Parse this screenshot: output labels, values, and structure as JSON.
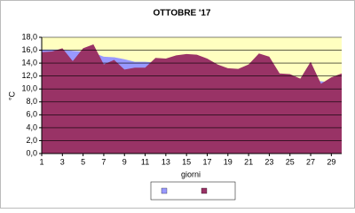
{
  "chart_data": {
    "type": "area",
    "title": "OTTOBRE '17",
    "x_label": "giorni",
    "y_label": "°C",
    "x": [
      1,
      2,
      3,
      4,
      5,
      6,
      7,
      8,
      9,
      10,
      11,
      12,
      13,
      14,
      15,
      16,
      17,
      18,
      19,
      20,
      21,
      22,
      23,
      24,
      25,
      26,
      27,
      28,
      29,
      30
    ],
    "xlim": [
      1,
      30
    ],
    "xticks": [
      1,
      3,
      5,
      7,
      9,
      11,
      13,
      15,
      17,
      19,
      21,
      23,
      25,
      27,
      29
    ],
    "ylim": [
      0,
      18
    ],
    "yticks": [
      {
        "value": 0,
        "label": "0,0"
      },
      {
        "value": 2,
        "label": "2,0"
      },
      {
        "value": 4,
        "label": "4,0"
      },
      {
        "value": 6,
        "label": "6,0"
      },
      {
        "value": 8,
        "label": "8,0"
      },
      {
        "value": 10,
        "label": "10,0"
      },
      {
        "value": 12,
        "label": "12,0"
      },
      {
        "value": 14,
        "label": "14,0"
      },
      {
        "value": 16,
        "label": "16,0"
      },
      {
        "value": 18,
        "label": "18,0"
      }
    ],
    "grid": true,
    "series": [
      {
        "color": "#9999ff",
        "values": [
          16.1,
          16.1,
          16.1,
          15.9,
          15.8,
          15.6,
          15.0,
          14.9,
          14.6,
          14.2,
          14.2,
          14.1,
          14.0,
          13.8,
          13.7,
          13.5,
          13.3,
          13.1,
          12.9,
          12.7,
          12.5,
          12.3,
          12.1,
          12.0,
          11.8,
          11.6,
          11.4,
          11.2,
          11.0,
          10.8
        ]
      },
      {
        "color": "#993366",
        "values": [
          15.7,
          15.8,
          16.3,
          14.3,
          16.3,
          16.9,
          13.8,
          14.5,
          13.0,
          13.3,
          13.3,
          14.8,
          14.7,
          15.2,
          15.4,
          15.3,
          14.7,
          13.8,
          13.2,
          13.1,
          13.8,
          15.5,
          15.0,
          12.4,
          12.3,
          11.6,
          14.2,
          10.8,
          11.8,
          12.4
        ]
      }
    ]
  }
}
